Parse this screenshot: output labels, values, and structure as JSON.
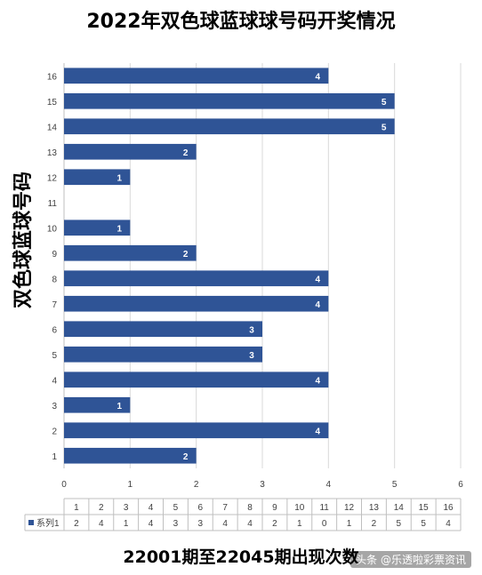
{
  "chart_data": {
    "type": "bar",
    "orientation": "horizontal",
    "title": "2022年双色球蓝球球号码开奖情况",
    "xlabel": "22001期至22045期出现次数",
    "ylabel": "双色球蓝球号码",
    "categories": [
      "1",
      "2",
      "3",
      "4",
      "5",
      "6",
      "7",
      "8",
      "9",
      "10",
      "11",
      "12",
      "13",
      "14",
      "15",
      "16"
    ],
    "series": [
      {
        "name": "系列1",
        "values": [
          2,
          4,
          1,
          4,
          3,
          3,
          4,
          4,
          2,
          1,
          0,
          1,
          2,
          5,
          5,
          4
        ],
        "color": "#2f5496"
      }
    ],
    "xlim": [
      0,
      6
    ],
    "xticks": [
      0,
      1,
      2,
      3,
      4,
      5,
      6
    ],
    "grid": true,
    "data_table": true
  },
  "watermark": "头条 @乐透啦彩票资讯"
}
